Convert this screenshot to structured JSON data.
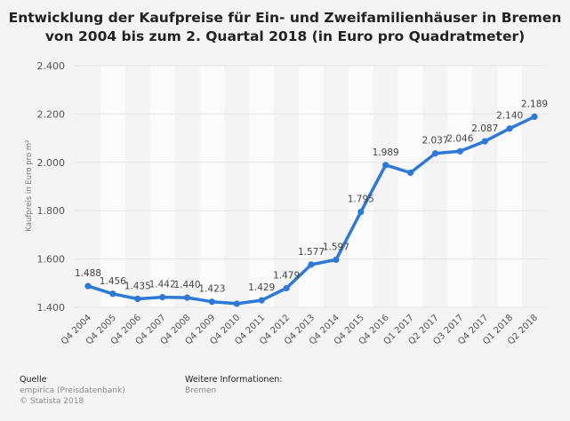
{
  "chart_data": {
    "type": "line",
    "title_line1": "Entwicklung der Kaufpreise für Ein- und Zweifamilienhäuser in Bremen",
    "title_line2": "von 2004 bis zum 2. Quartal 2018 (in Euro pro Quadratmeter)",
    "ylabel": "Kaufpreis in Euro pro m²",
    "xlabel": "",
    "ylim": [
      1400,
      2400
    ],
    "yticks": [
      1400,
      1600,
      1800,
      2000,
      2200,
      2400
    ],
    "ytick_labels": [
      "1.400",
      "1.600",
      "1.800",
      "2.000",
      "2.200",
      "2.400"
    ],
    "categories": [
      "Q4 2004",
      "Q4 2005",
      "Q4 2006",
      "Q4 2007",
      "Q4 2008",
      "Q4 2009",
      "Q4 2010",
      "Q4 2011",
      "Q4 2012",
      "Q4 2013",
      "Q4 2014",
      "Q4 2015",
      "Q4 2016",
      "Q1 2017",
      "Q2 2017",
      "Q3 2017",
      "Q4 2017",
      "Q1 2018",
      "Q2 2018"
    ],
    "values": [
      1488,
      1456,
      1435,
      1442,
      1440,
      1423,
      1415,
      1429,
      1479,
      1577,
      1597,
      1795,
      1989,
      1957,
      2037,
      2046,
      2087,
      2140,
      2189
    ],
    "value_labels": [
      "1.488",
      "1.456",
      "1.435",
      "1.442",
      "1.440",
      "1.423",
      "",
      "1.429",
      "1.479",
      "1.577",
      "1.597",
      "1.795",
      "1.989",
      "",
      "2.037",
      "2.046",
      "2.087",
      "2.140",
      "2.189"
    ],
    "grid": true,
    "line_color": "#2f78d6",
    "band_color": "#fbfbfb",
    "grid_color": "#e6e6e6"
  },
  "footer": {
    "source_heading": "Quelle",
    "source_text": "empirica (Preisdatenbank)",
    "copyright": "© Statista 2018",
    "info_heading": "Weitere Informationen:",
    "info_text": "Bremen"
  }
}
